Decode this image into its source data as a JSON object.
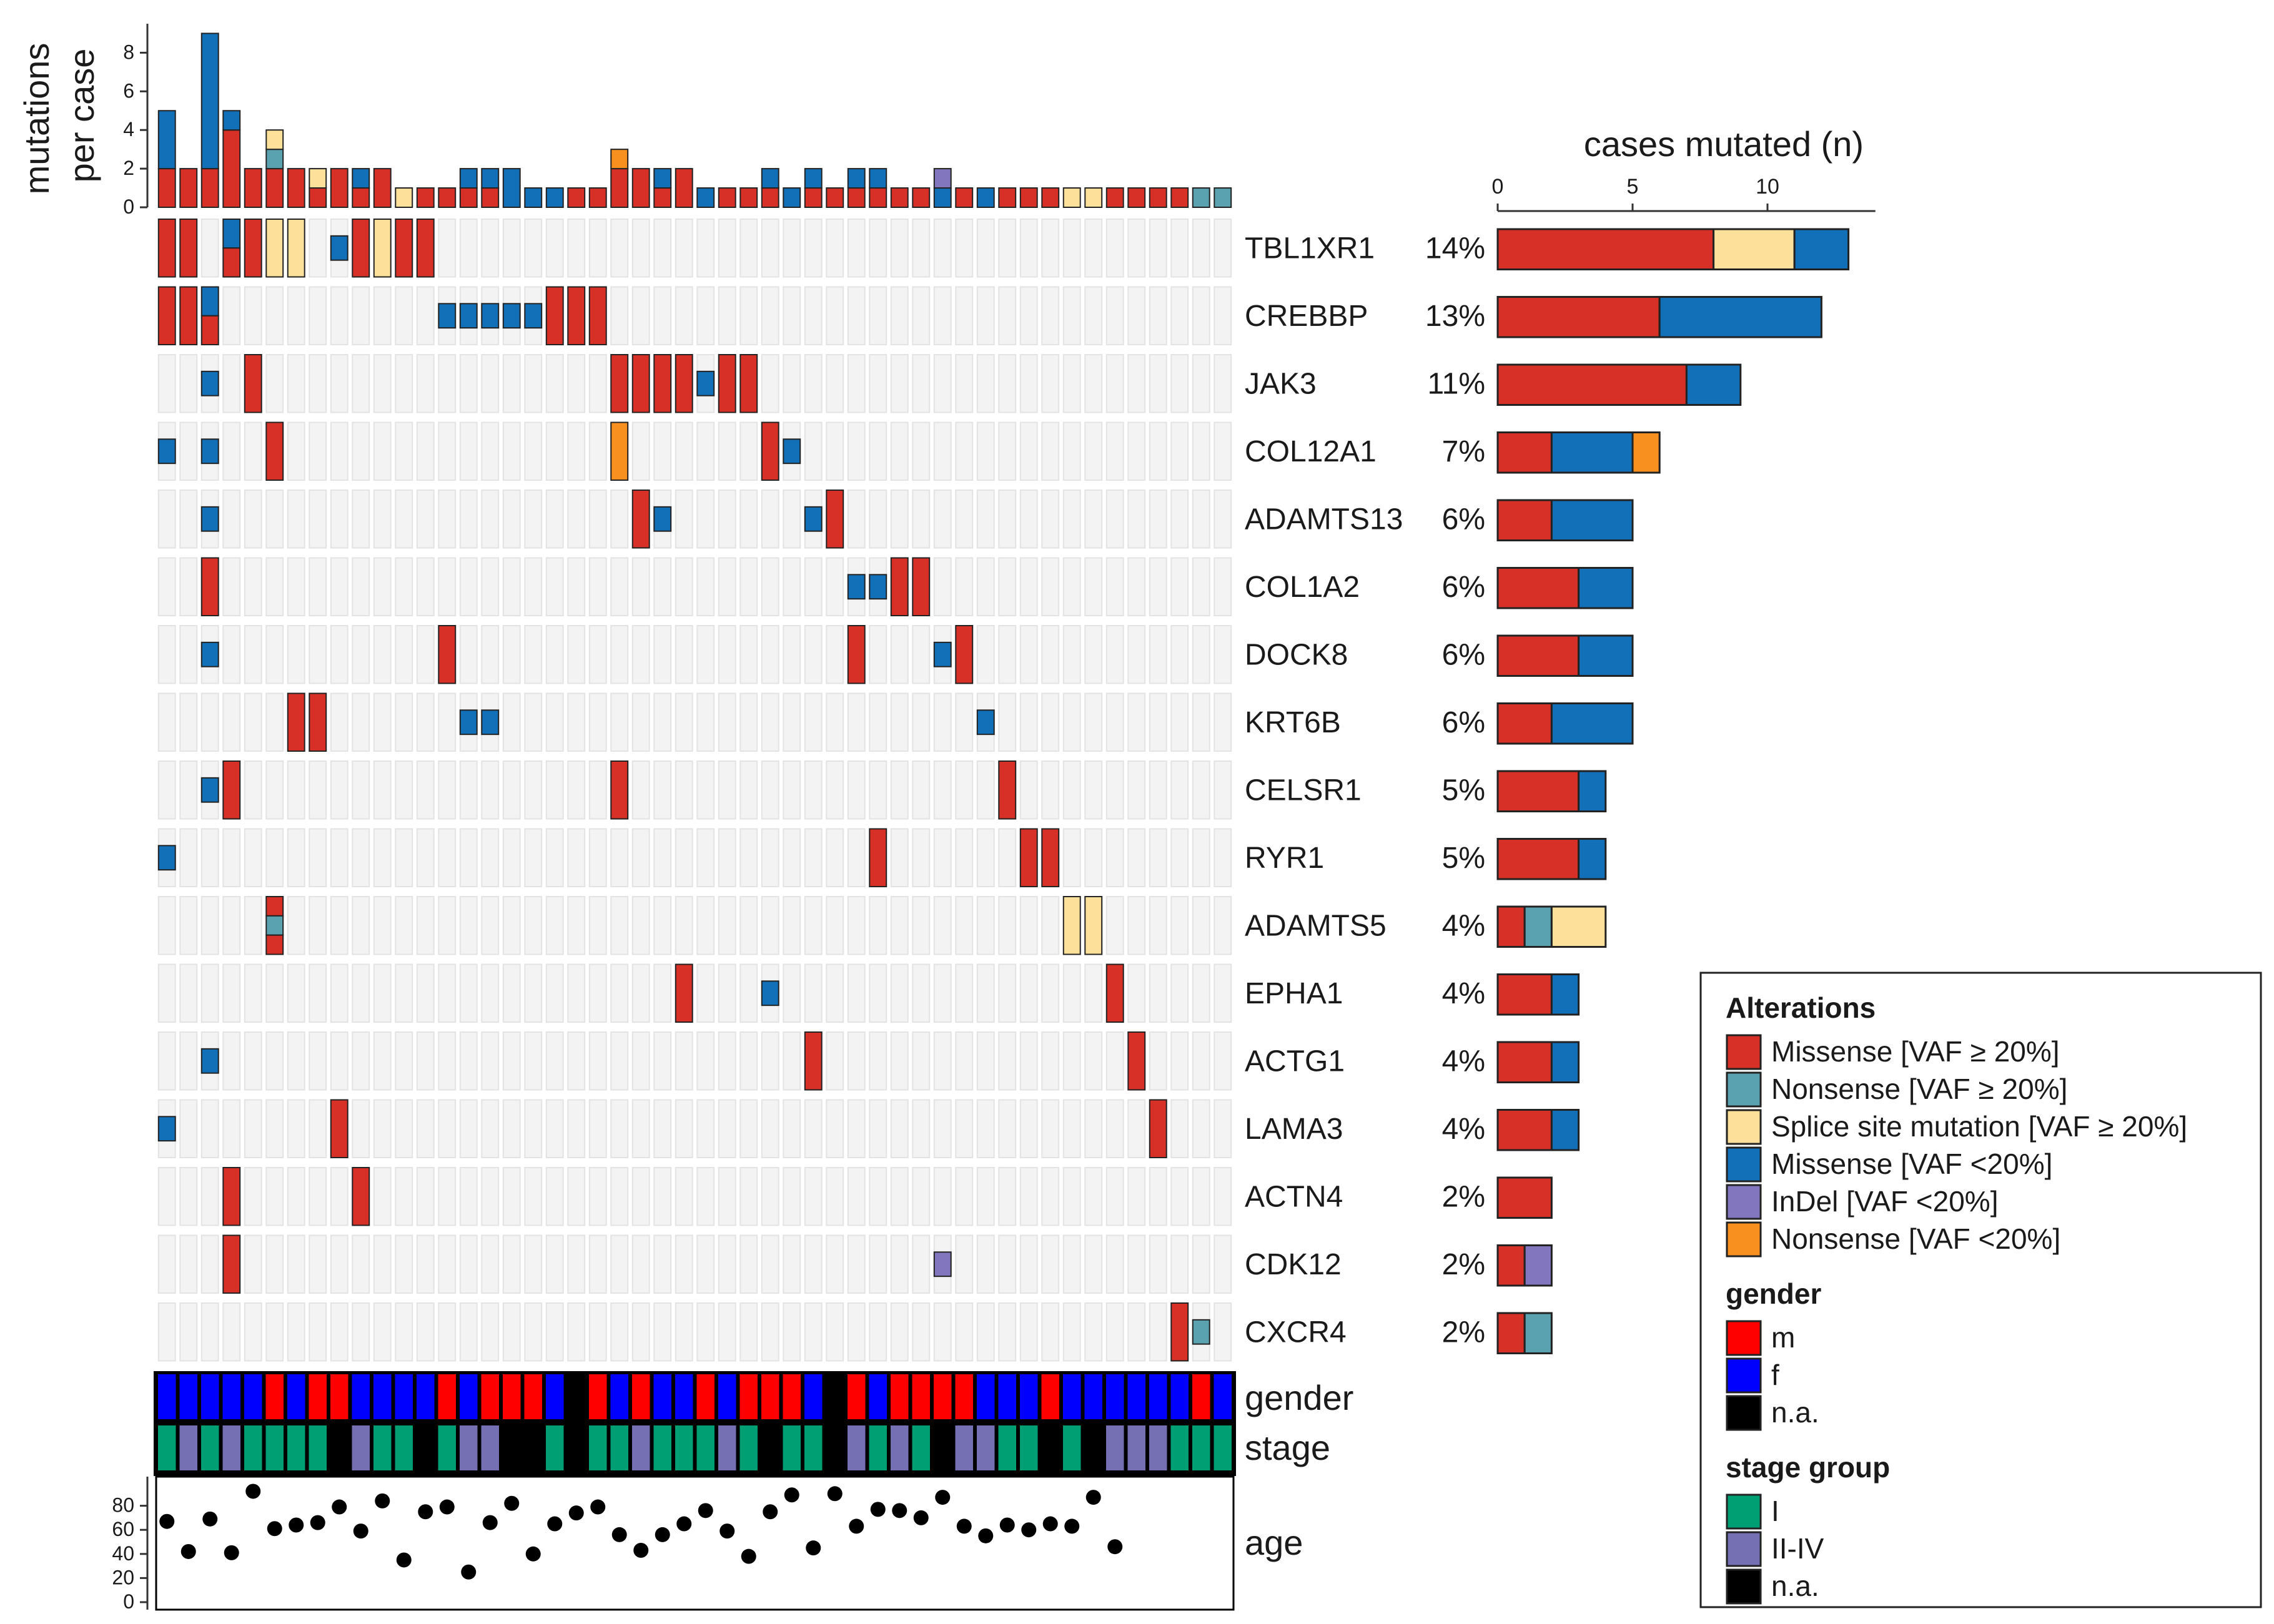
{
  "chart_data": {
    "type": "oncoprint",
    "n_cases": 50,
    "top_barplot": {
      "ylabel_line1": "mutations",
      "ylabel_line2": "per case",
      "ticks": [
        0,
        2,
        4,
        6,
        8
      ],
      "ylim": [
        0,
        9.5
      ]
    },
    "right_barplot": {
      "title": "cases mutated (n)",
      "ticks": [
        0,
        5,
        10
      ],
      "xlim": [
        0,
        14
      ]
    },
    "genes": [
      {
        "name": "TBL1XR1",
        "pct": "14%"
      },
      {
        "name": "CREBBP",
        "pct": "13%"
      },
      {
        "name": "JAK3",
        "pct": "11%"
      },
      {
        "name": "COL12A1",
        "pct": "7%"
      },
      {
        "name": "ADAMTS13",
        "pct": "6%"
      },
      {
        "name": "COL1A2",
        "pct": "6%"
      },
      {
        "name": "DOCK8",
        "pct": "6%"
      },
      {
        "name": "KRT6B",
        "pct": "6%"
      },
      {
        "name": "CELSR1",
        "pct": "5%"
      },
      {
        "name": "RYR1",
        "pct": "5%"
      },
      {
        "name": "ADAMTS5",
        "pct": "4%"
      },
      {
        "name": "EPHA1",
        "pct": "4%"
      },
      {
        "name": "ACTG1",
        "pct": "4%"
      },
      {
        "name": "LAMA3",
        "pct": "4%"
      },
      {
        "name": "ACTN4",
        "pct": "2%"
      },
      {
        "name": "CDK12",
        "pct": "2%"
      },
      {
        "name": "CXCR4",
        "pct": "2%"
      }
    ],
    "alteration_types": [
      {
        "key": "MH",
        "label": "Missense [VAF ≥ 20%]",
        "color": "#d73027"
      },
      {
        "key": "NH",
        "label": "Nonsense [VAF ≥ 20%]",
        "color": "#5aa2b0"
      },
      {
        "key": "SH",
        "label": "Splice site mutation [VAF ≥ 20%]",
        "color": "#fde19a"
      },
      {
        "key": "ML",
        "label": "Missense [VAF <20%]",
        "color": "#1170b8"
      },
      {
        "key": "IL",
        "label": "InDel [VAF <20%]",
        "color": "#8276be"
      },
      {
        "key": "NL",
        "label": "Nonsense [VAF <20%]",
        "color": "#f7901e"
      }
    ],
    "mutations": [
      [
        0,
        0,
        [
          "MH"
        ]
      ],
      [
        0,
        1,
        [
          "MH"
        ]
      ],
      [
        0,
        3,
        [
          "ML",
          "MH"
        ]
      ],
      [
        0,
        4,
        [
          "MH"
        ]
      ],
      [
        0,
        5,
        [
          "SH"
        ]
      ],
      [
        0,
        6,
        [
          "SH"
        ]
      ],
      [
        0,
        8,
        [
          "ML"
        ]
      ],
      [
        0,
        9,
        [
          "MH"
        ]
      ],
      [
        0,
        10,
        [
          "SH"
        ]
      ],
      [
        0,
        11,
        [
          "MH"
        ]
      ],
      [
        0,
        12,
        [
          "MH"
        ]
      ],
      [
        1,
        0,
        [
          "MH"
        ]
      ],
      [
        1,
        1,
        [
          "MH"
        ]
      ],
      [
        1,
        2,
        [
          "ML",
          "MH"
        ]
      ],
      [
        1,
        13,
        [
          "ML"
        ]
      ],
      [
        1,
        14,
        [
          "ML"
        ]
      ],
      [
        1,
        15,
        [
          "ML"
        ]
      ],
      [
        1,
        16,
        [
          "ML"
        ]
      ],
      [
        1,
        17,
        [
          "ML"
        ]
      ],
      [
        1,
        18,
        [
          "MH"
        ]
      ],
      [
        1,
        19,
        [
          "MH"
        ]
      ],
      [
        1,
        20,
        [
          "MH"
        ]
      ],
      [
        2,
        2,
        [
          "ML"
        ]
      ],
      [
        2,
        4,
        [
          "MH"
        ]
      ],
      [
        2,
        21,
        [
          "MH"
        ]
      ],
      [
        2,
        22,
        [
          "MH"
        ]
      ],
      [
        2,
        23,
        [
          "MH"
        ]
      ],
      [
        2,
        24,
        [
          "MH"
        ]
      ],
      [
        2,
        25,
        [
          "ML"
        ]
      ],
      [
        2,
        26,
        [
          "MH"
        ]
      ],
      [
        2,
        27,
        [
          "MH"
        ]
      ],
      [
        3,
        0,
        [
          "ML"
        ]
      ],
      [
        3,
        2,
        [
          "ML"
        ]
      ],
      [
        3,
        5,
        [
          "MH"
        ]
      ],
      [
        3,
        21,
        [
          "NL"
        ]
      ],
      [
        3,
        28,
        [
          "MH"
        ]
      ],
      [
        3,
        29,
        [
          "ML"
        ]
      ],
      [
        4,
        2,
        [
          "ML"
        ]
      ],
      [
        4,
        22,
        [
          "MH"
        ]
      ],
      [
        4,
        23,
        [
          "ML"
        ]
      ],
      [
        4,
        30,
        [
          "ML"
        ]
      ],
      [
        4,
        31,
        [
          "MH"
        ]
      ],
      [
        5,
        2,
        [
          "MH"
        ]
      ],
      [
        5,
        32,
        [
          "ML"
        ]
      ],
      [
        5,
        33,
        [
          "ML"
        ]
      ],
      [
        5,
        34,
        [
          "MH"
        ]
      ],
      [
        5,
        35,
        [
          "MH"
        ]
      ],
      [
        6,
        2,
        [
          "ML"
        ]
      ],
      [
        6,
        13,
        [
          "MH"
        ]
      ],
      [
        6,
        32,
        [
          "MH"
        ]
      ],
      [
        6,
        36,
        [
          "ML"
        ]
      ],
      [
        6,
        37,
        [
          "MH"
        ]
      ],
      [
        7,
        6,
        [
          "MH"
        ]
      ],
      [
        7,
        7,
        [
          "MH"
        ]
      ],
      [
        7,
        14,
        [
          "ML"
        ]
      ],
      [
        7,
        15,
        [
          "ML"
        ]
      ],
      [
        7,
        38,
        [
          "ML"
        ]
      ],
      [
        8,
        2,
        [
          "ML"
        ]
      ],
      [
        8,
        3,
        [
          "MH"
        ]
      ],
      [
        8,
        21,
        [
          "MH"
        ]
      ],
      [
        8,
        39,
        [
          "MH"
        ]
      ],
      [
        9,
        0,
        [
          "ML"
        ]
      ],
      [
        9,
        33,
        [
          "MH"
        ]
      ],
      [
        9,
        40,
        [
          "MH"
        ]
      ],
      [
        9,
        41,
        [
          "MH"
        ]
      ],
      [
        10,
        5,
        [
          "MH",
          "NH",
          "MH"
        ]
      ],
      [
        10,
        42,
        [
          "SH"
        ]
      ],
      [
        10,
        43,
        [
          "SH"
        ]
      ],
      [
        11,
        24,
        [
          "MH"
        ]
      ],
      [
        11,
        28,
        [
          "ML"
        ]
      ],
      [
        11,
        44,
        [
          "MH"
        ]
      ],
      [
        12,
        2,
        [
          "ML"
        ]
      ],
      [
        12,
        30,
        [
          "MH"
        ]
      ],
      [
        12,
        45,
        [
          "MH"
        ]
      ],
      [
        13,
        0,
        [
          "ML"
        ]
      ],
      [
        13,
        8,
        [
          "MH"
        ]
      ],
      [
        13,
        46,
        [
          "MH"
        ]
      ],
      [
        14,
        3,
        [
          "MH"
        ]
      ],
      [
        14,
        9,
        [
          "MH"
        ]
      ],
      [
        15,
        3,
        [
          "MH"
        ]
      ],
      [
        15,
        36,
        [
          "IL"
        ]
      ],
      [
        16,
        47,
        [
          "MH"
        ]
      ],
      [
        16,
        48,
        [
          "NH"
        ]
      ]
    ],
    "mutations_per_case": [
      {
        "MH": 2,
        "ML": 3
      },
      {
        "MH": 2
      },
      {
        "MH": 2,
        "ML": 7
      },
      {
        "MH": 4,
        "ML": 1
      },
      {
        "MH": 2
      },
      {
        "MH": 2,
        "NH": 1,
        "SH": 1
      },
      {
        "MH": 2
      },
      {
        "MH": 1,
        "SH": 1
      },
      {
        "MH": 2
      },
      {
        "MH": 1,
        "ML": 1
      },
      {
        "MH": 2
      },
      {
        "SH": 1
      },
      {
        "MH": 1
      },
      {
        "MH": 1
      },
      {
        "MH": 1,
        "ML": 1
      },
      {
        "MH": 1,
        "ML": 1
      },
      {
        "ML": 2
      },
      {
        "ML": 1
      },
      {
        "ML": 1
      },
      {
        "MH": 1
      },
      {
        "MH": 1
      },
      {
        "MH": 2,
        "NL": 1
      },
      {
        "MH": 2
      },
      {
        "MH": 1,
        "ML": 1
      },
      {
        "MH": 2
      },
      {
        "ML": 1
      },
      {
        "MH": 1
      },
      {
        "MH": 1
      },
      {
        "MH": 1,
        "ML": 1
      },
      {
        "ML": 1
      },
      {
        "MH": 1,
        "ML": 1
      },
      {
        "MH": 1
      },
      {
        "MH": 1,
        "ML": 1
      },
      {
        "MH": 1,
        "ML": 1
      },
      {
        "MH": 1
      },
      {
        "MH": 1
      },
      {
        "ML": 1,
        "IL": 1
      },
      {
        "MH": 1
      },
      {
        "ML": 1
      },
      {
        "MH": 1
      },
      {
        "MH": 1
      },
      {
        "MH": 1
      },
      {
        "SH": 1
      },
      {
        "SH": 1
      },
      {
        "MH": 1
      },
      {
        "MH": 1
      },
      {
        "MH": 1
      },
      {
        "MH": 1
      },
      {
        "NH": 1
      },
      {
        "ML": 0
      }
    ],
    "cases_mutated": [
      {
        "gene": "TBL1XR1",
        "MH": 8,
        "ML": 2,
        "SH": 3
      },
      {
        "gene": "CREBBP",
        "MH": 6,
        "ML": 6
      },
      {
        "gene": "JAK3",
        "MH": 7,
        "ML": 2
      },
      {
        "gene": "COL12A1",
        "MH": 2,
        "ML": 3,
        "NL": 1
      },
      {
        "gene": "ADAMTS13",
        "MH": 2,
        "ML": 3
      },
      {
        "gene": "COL1A2",
        "MH": 3,
        "ML": 2
      },
      {
        "gene": "DOCK8",
        "MH": 3,
        "ML": 2
      },
      {
        "gene": "KRT6B",
        "MH": 2,
        "ML": 3
      },
      {
        "gene": "CELSR1",
        "MH": 3,
        "ML": 1
      },
      {
        "gene": "RYR1",
        "MH": 3,
        "ML": 1
      },
      {
        "gene": "ADAMTS5",
        "MH": 1,
        "NH": 1,
        "SH": 2
      },
      {
        "gene": "EPHA1",
        "MH": 2,
        "ML": 1
      },
      {
        "gene": "ACTG1",
        "MH": 2,
        "ML": 1
      },
      {
        "gene": "LAMA3",
        "MH": 2,
        "ML": 1
      },
      {
        "gene": "ACTN4",
        "MH": 2
      },
      {
        "gene": "CDK12",
        "MH": 1,
        "IL": 1
      },
      {
        "gene": "CXCR4",
        "MH": 1,
        "NH": 1
      }
    ],
    "tracks": {
      "gender_label": "gender",
      "stage_label": "stage",
      "age_label": "age",
      "gender": [
        "f",
        "f",
        "f",
        "f",
        "f",
        "m",
        "f",
        "m",
        "m",
        "f",
        "f",
        "f",
        "f",
        "m",
        "f",
        "m",
        "m",
        "m",
        "f",
        "na",
        "m",
        "f",
        "m",
        "f",
        "f",
        "m",
        "f",
        "m",
        "m",
        "m",
        "f",
        "na",
        "m",
        "f",
        "m",
        "m",
        "m",
        "m",
        "f",
        "f",
        "f",
        "m",
        "f",
        "f",
        "f",
        "f",
        "f",
        "f",
        "m",
        "f"
      ],
      "stage": [
        "I",
        "II-IV",
        "I",
        "II-IV",
        "I",
        "I",
        "I",
        "I",
        "na",
        "II-IV",
        "I",
        "I",
        "na",
        "I",
        "II-IV",
        "II-IV",
        "na",
        "na",
        "I",
        "na",
        "I",
        "I",
        "II-IV",
        "I",
        "I",
        "I",
        "II-IV",
        "I",
        "na",
        "I",
        "I",
        "na",
        "II-IV",
        "I",
        "II-IV",
        "I",
        "na",
        "II-IV",
        "II-IV",
        "I",
        "I",
        "na",
        "I",
        "na",
        "II-IV",
        "II-IV",
        "II-IV",
        "I",
        "I",
        "I"
      ],
      "age": [
        67,
        42,
        69,
        41,
        92,
        61,
        64,
        66,
        79,
        59,
        84,
        35,
        75,
        79,
        25,
        66,
        82,
        40,
        65,
        74,
        79,
        56,
        43,
        56,
        65,
        76,
        59,
        38,
        75,
        89,
        45,
        90,
        63,
        77,
        76,
        70,
        87,
        63,
        55,
        64,
        60,
        65,
        63,
        87,
        46,
        null,
        null,
        null,
        null,
        null
      ],
      "age_ticks": [
        0,
        20,
        40,
        60,
        80
      ]
    },
    "legend": {
      "alterations_title": "Alterations",
      "gender_title": "gender",
      "gender_items": [
        {
          "label": "m",
          "color": "#ff0000"
        },
        {
          "label": "f",
          "color": "#0000ff"
        },
        {
          "label": "n.a.",
          "color": "#000000"
        }
      ],
      "stage_title": "stage group",
      "stage_items": [
        {
          "label": "I",
          "color": "#009e73"
        },
        {
          "label": "II-IV",
          "color": "#7570b3"
        },
        {
          "label": "n.a.",
          "color": "#000000"
        }
      ]
    }
  }
}
